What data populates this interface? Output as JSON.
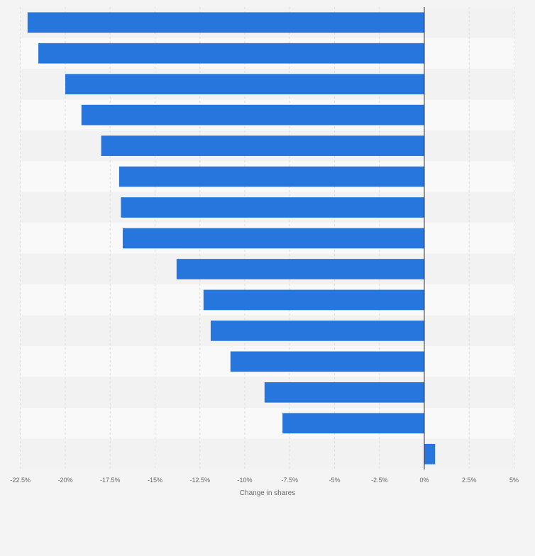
{
  "chart_data": {
    "type": "bar",
    "orientation": "horizontal",
    "xlabel": "Change in shares",
    "xlim": [
      -23.5,
      5
    ],
    "x_ticks": [
      -22.5,
      -20,
      -17.5,
      -15,
      -12.5,
      -10,
      -7.5,
      -5,
      -2.5,
      0,
      2.5,
      5
    ],
    "x_tick_labels": [
      "-22.5%",
      "-20%",
      "-17.5%",
      "-15%",
      "-12.5%",
      "-10%",
      "-7.5%",
      "-5%",
      "-2.5%",
      "0%",
      "2.5%",
      "5%"
    ],
    "values": [
      -22.1,
      -21.5,
      -20.0,
      -19.1,
      -18.0,
      -17.0,
      -16.9,
      -16.8,
      -13.8,
      -12.3,
      -11.9,
      -10.8,
      -8.9,
      -7.9,
      0.6
    ],
    "grid": true,
    "colors": {
      "bar": "#2776dd",
      "zero_line": "#333333",
      "grid": "#dcdcdc",
      "band_light": "#f9f9f9",
      "band_dark": "#f2f2f2",
      "text": "#666666"
    }
  }
}
